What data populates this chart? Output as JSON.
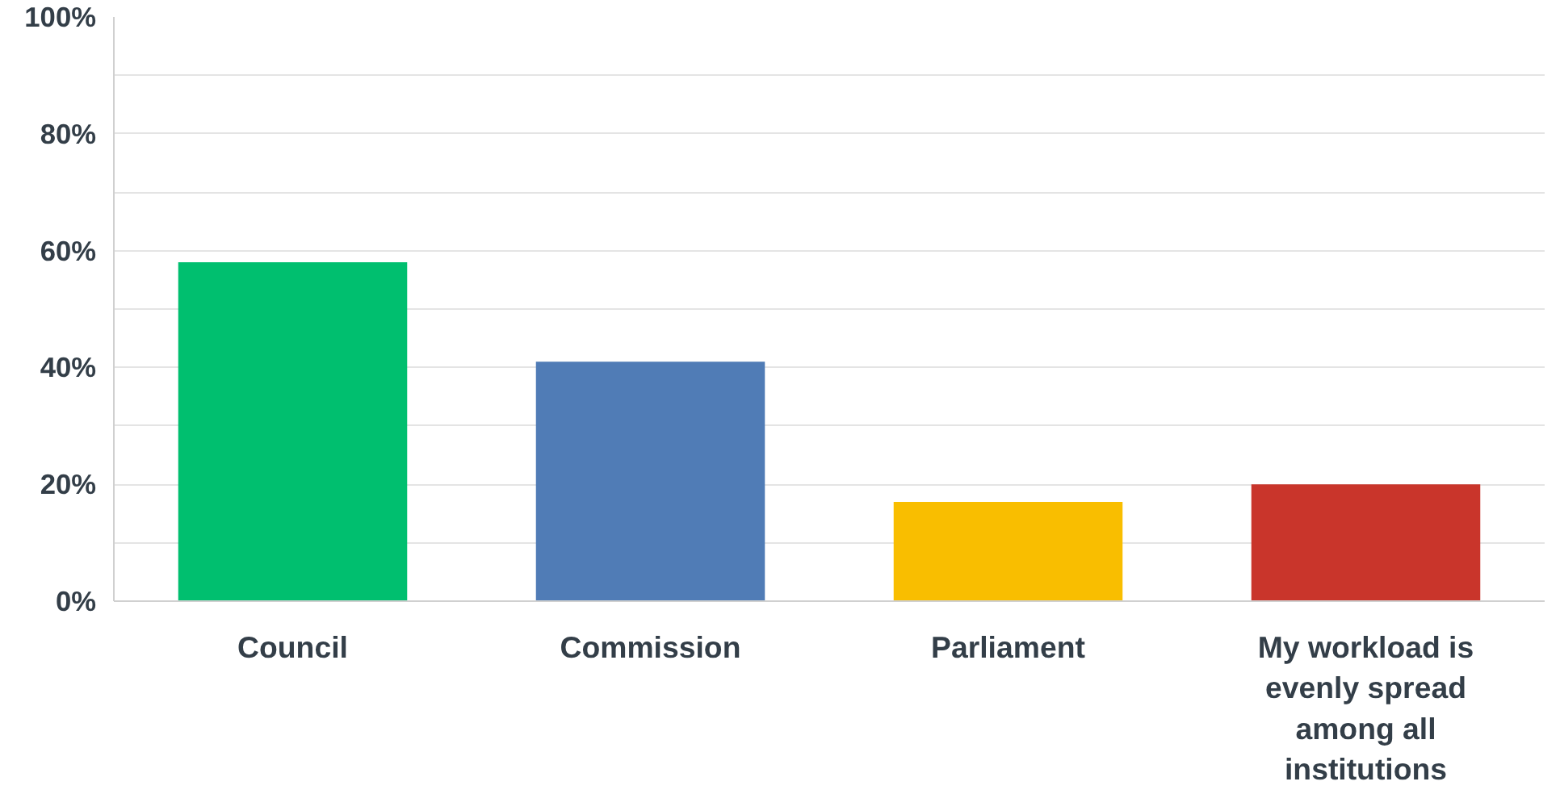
{
  "chart_data": {
    "type": "bar",
    "categories": [
      "Council",
      "Commission",
      "Parliament",
      "My workload is evenly spread among all institutions"
    ],
    "values": [
      58,
      41,
      17,
      20
    ],
    "colors": [
      "#00bf6f",
      "#507cb6",
      "#f9be00",
      "#c9352b"
    ],
    "ylim": [
      0,
      100
    ],
    "yticks": [
      {
        "value": 0,
        "label": "0%"
      },
      {
        "value": 10,
        "label": null
      },
      {
        "value": 20,
        "label": "20%"
      },
      {
        "value": 30,
        "label": null
      },
      {
        "value": 40,
        "label": "40%"
      },
      {
        "value": 50,
        "label": null
      },
      {
        "value": 60,
        "label": "60%"
      },
      {
        "value": 70,
        "label": null
      },
      {
        "value": 80,
        "label": "80%"
      },
      {
        "value": 90,
        "label": null
      },
      {
        "value": 100,
        "label": "100%"
      }
    ],
    "grid": "y"
  }
}
